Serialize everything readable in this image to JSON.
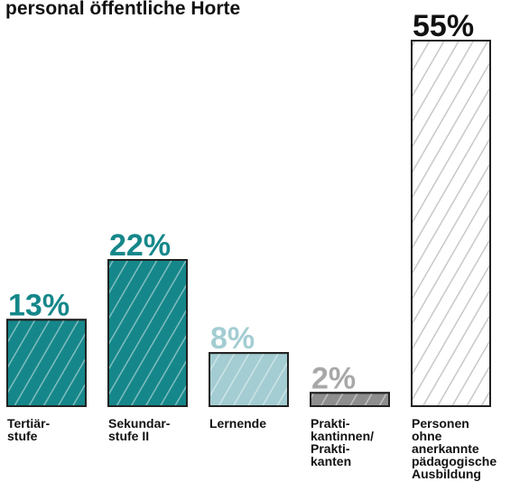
{
  "chart_data": {
    "type": "bar",
    "title": "personal öffentliche Horte",
    "categories": [
      "Tertiär-\nstufe",
      "Sekundar-\nstufe II",
      "Lernende",
      "Prakti-\nkantinnen/\nPrakti-\nkanten",
      "Personen\nohne\nanerkannte\npädagogische\nAusbildung"
    ],
    "values": [
      13,
      22,
      8,
      2,
      55
    ],
    "value_labels": [
      "13%",
      "22%",
      "8%",
      "2%",
      "55%"
    ],
    "colors": [
      "#15878a",
      "#15878a",
      "#a3cdd2",
      "#8e8e8e",
      "#ffffff"
    ],
    "label_colors": [
      "#15878a",
      "#15878a",
      "#a3cdd2",
      "#a8a8a8",
      "#111111"
    ]
  }
}
